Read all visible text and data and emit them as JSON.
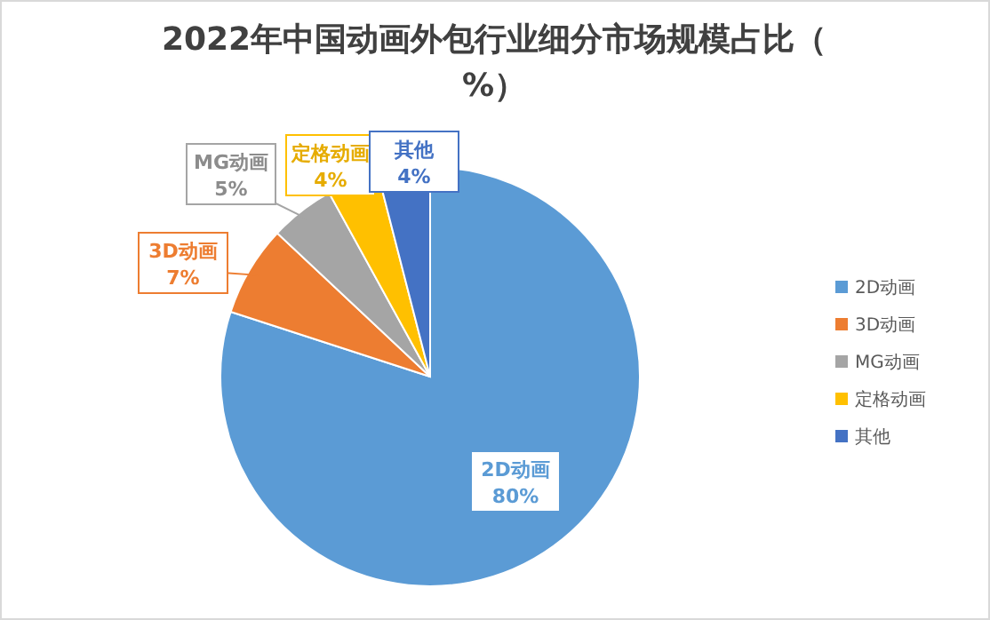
{
  "chart_data": {
    "type": "pie",
    "title": "2022年中国动画外包行业细分市场规模占比（%）",
    "categories": [
      "2D动画",
      "3D动画",
      "MG动画",
      "定格动画",
      "其他"
    ],
    "values": [
      80,
      7,
      5,
      4,
      4
    ],
    "colors": [
      "#5b9bd5",
      "#ed7d31",
      "#a5a5a5",
      "#ffc000",
      "#4472c4"
    ],
    "value_labels": [
      "80%",
      "7%",
      "5%",
      "4%",
      "4%"
    ],
    "legend": "right"
  }
}
